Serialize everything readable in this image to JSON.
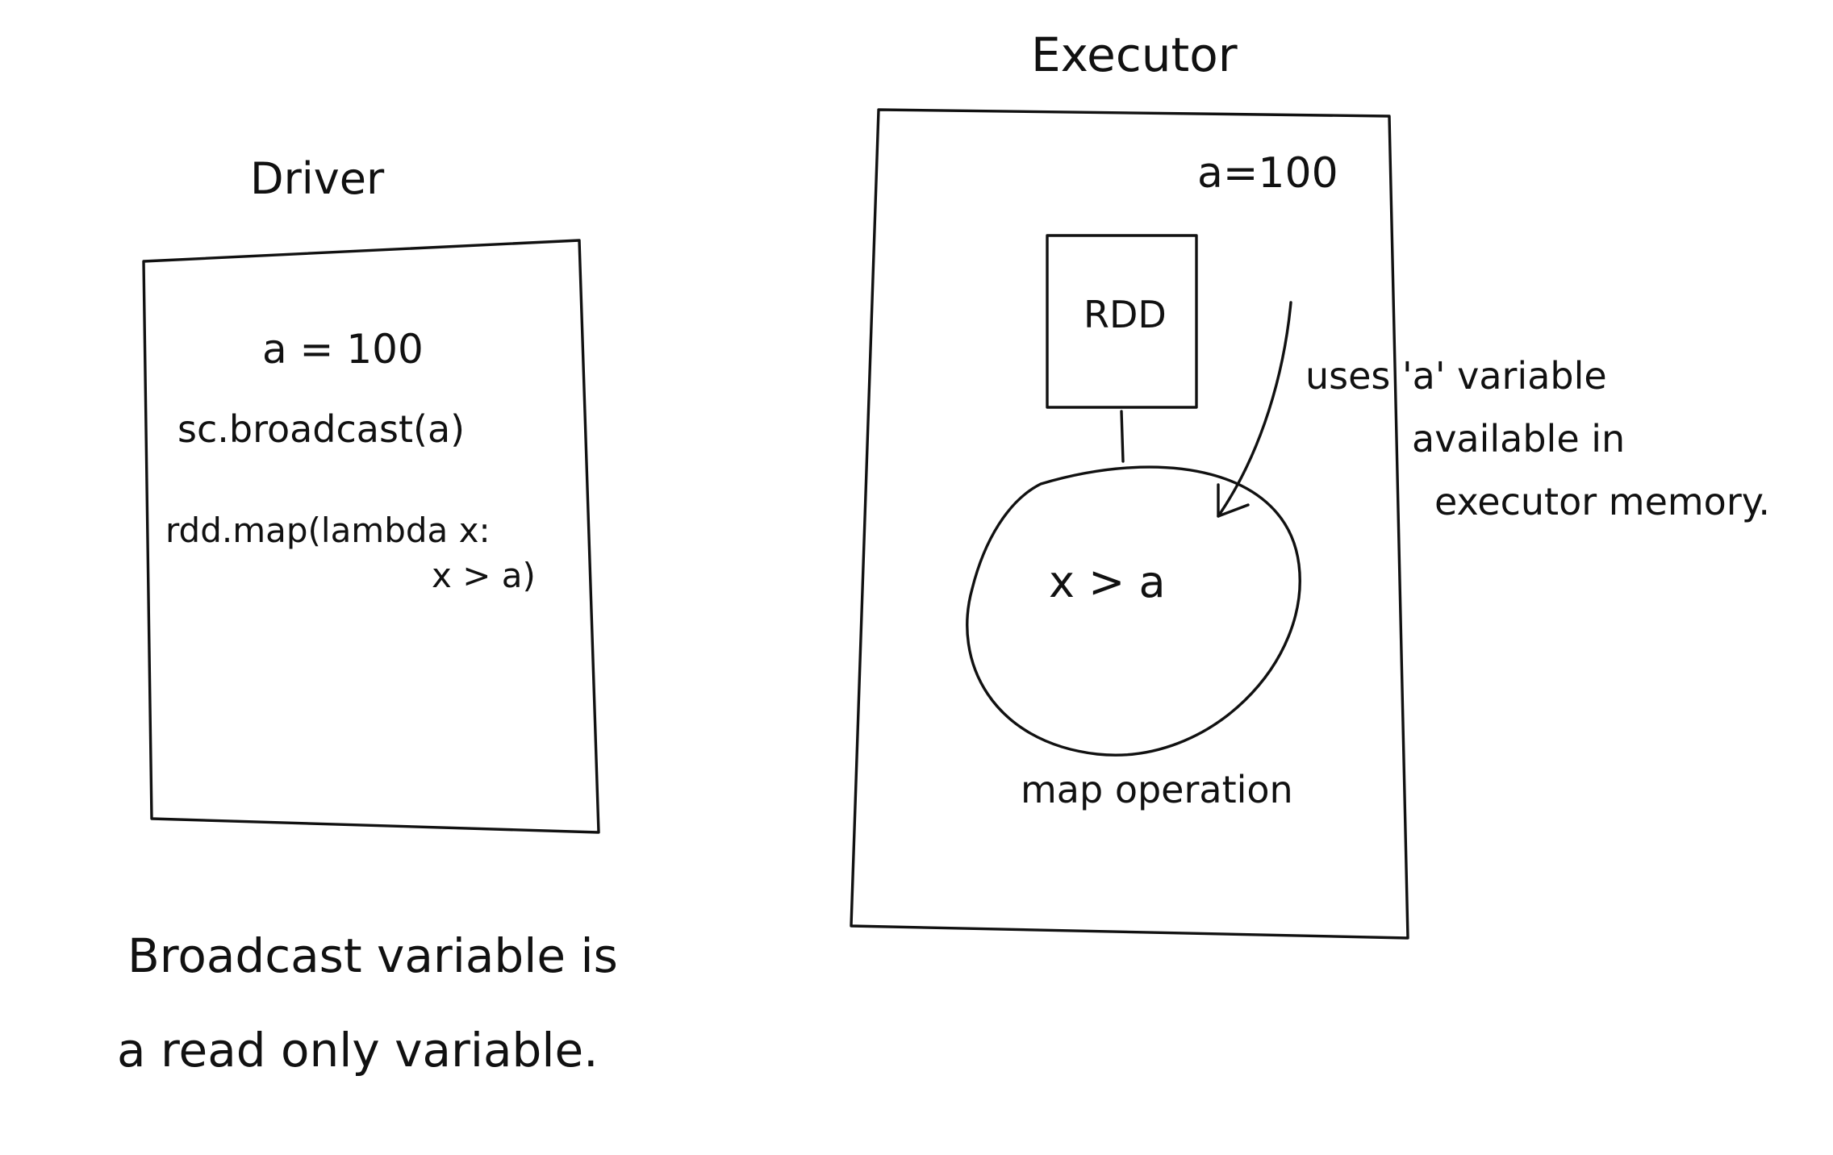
{
  "driver": {
    "title": "Driver",
    "code_lines": [
      "a = 100",
      "sc.broadcast(a)",
      "rdd.map(lambda x:",
      "x > a)"
    ]
  },
  "executor": {
    "title": "Executor",
    "variable": "a=100",
    "rdd_label": "RDD",
    "map_expression": "x > a",
    "map_caption": "map operation",
    "note_lines": [
      "uses 'a' variable",
      "available in",
      "executor memory."
    ]
  },
  "footer": {
    "lines": [
      "Broadcast variable is",
      "a read only variable."
    ]
  },
  "colors": {
    "ink": "#111111",
    "paper": "#ffffff"
  }
}
